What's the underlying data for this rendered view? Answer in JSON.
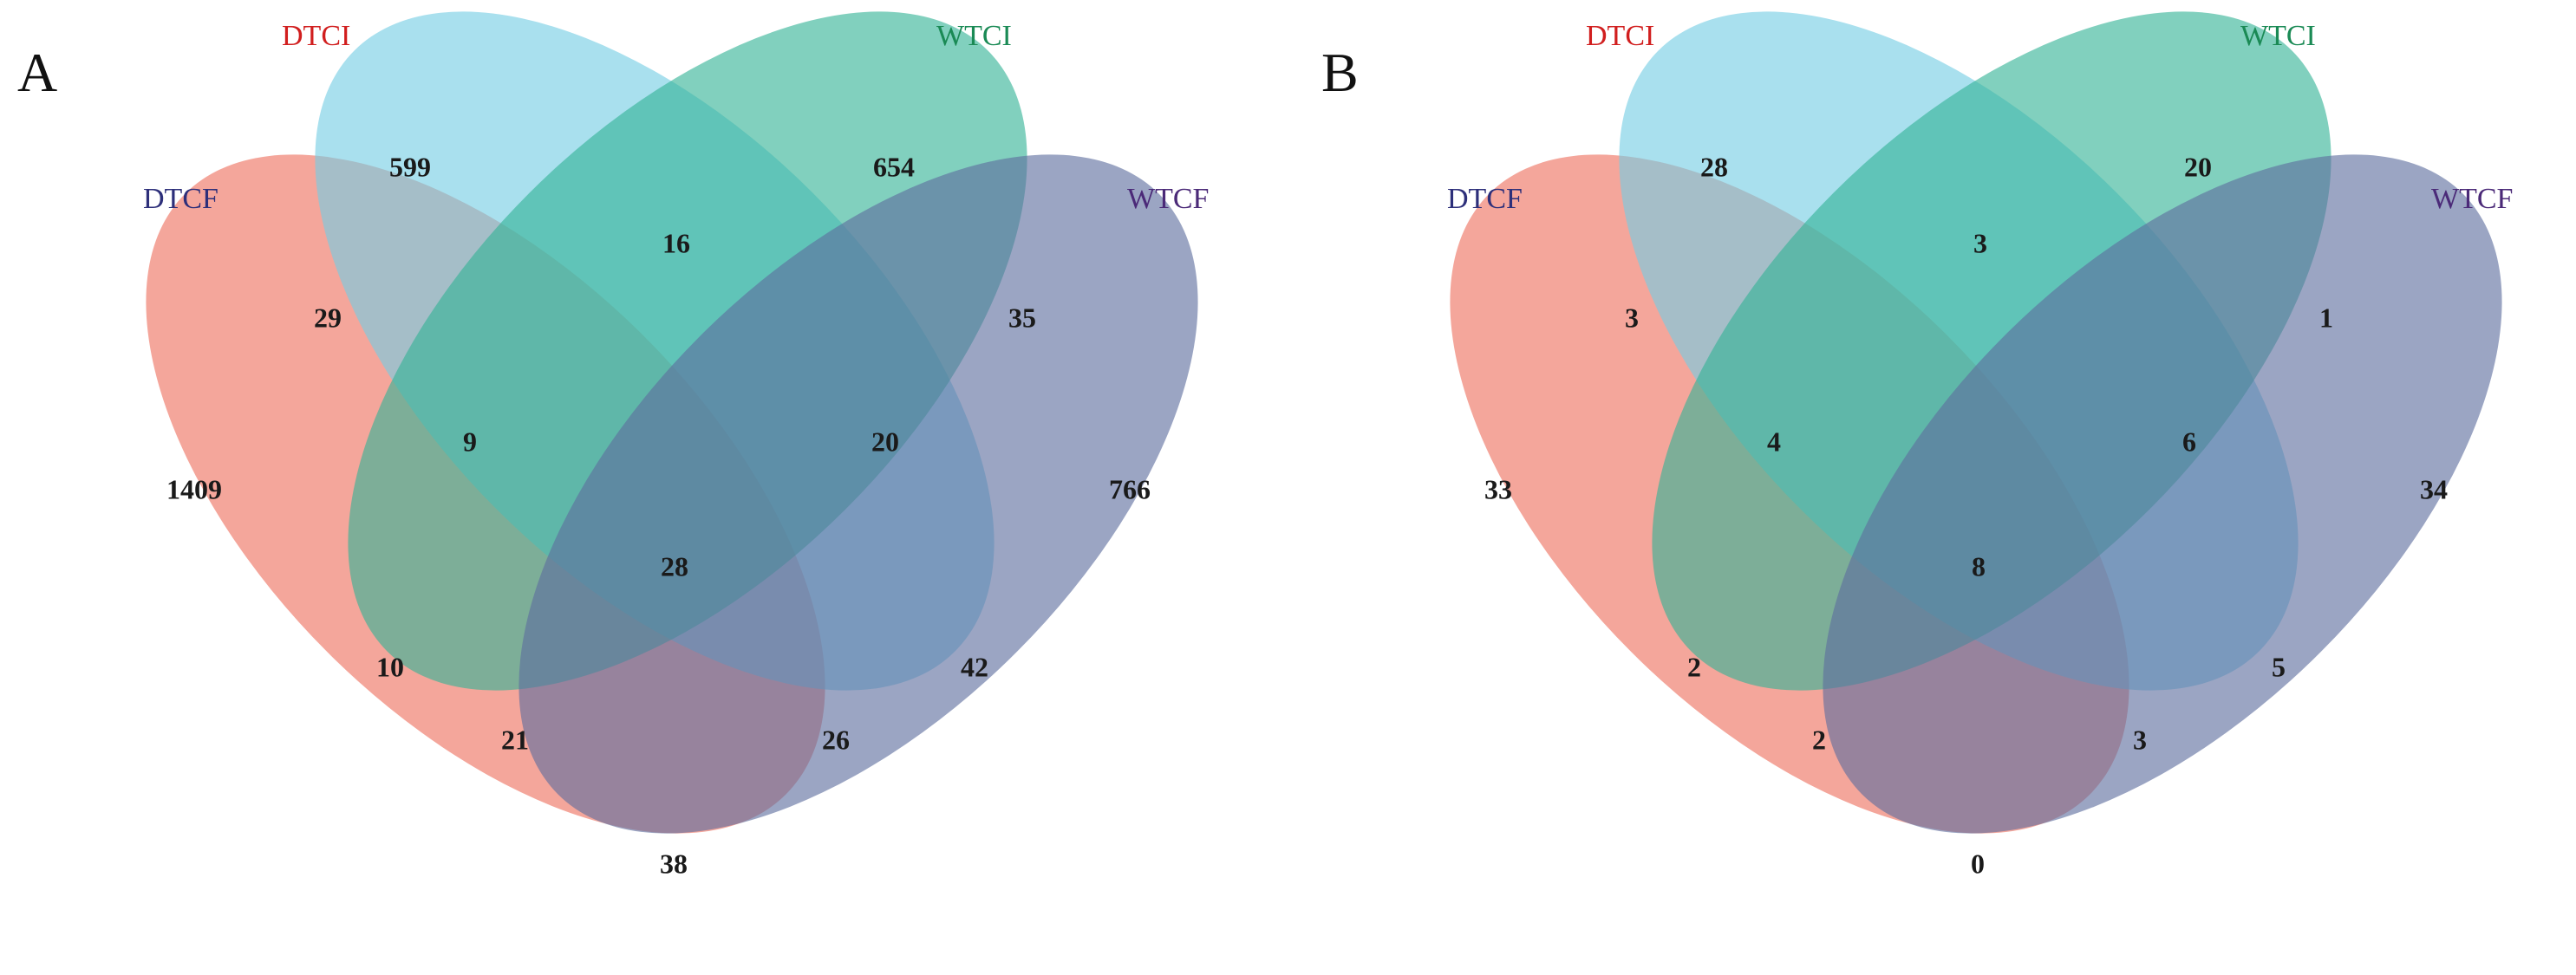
{
  "figure": {
    "panels": [
      {
        "panel_label": "A",
        "sets": [
          {
            "key": "DTCF",
            "label": "DTCF",
            "fill": "#ee6f5d",
            "label_color": "#2d2f7a"
          },
          {
            "key": "DTCI",
            "label": "DTCI",
            "fill": "#74cde4",
            "label_color": "#d11e1e"
          },
          {
            "key": "WTCI",
            "label": "WTCI",
            "fill": "#33b396",
            "label_color": "#1a8a55"
          },
          {
            "key": "WTCF",
            "label": "WTCF",
            "fill": "#5d6e9e",
            "label_color": "#4b2a78"
          }
        ],
        "regions": {
          "DTCF_only": "1409",
          "DTCI_only": "599",
          "WTCI_only": "654",
          "WTCF_only": "766",
          "DTCF_DTCI": "29",
          "DTCI_WTCI": "16",
          "WTCI_WTCF": "35",
          "DTCF_DTCI_WTCI": "9",
          "DTCI_WTCI_WTCF": "20",
          "all_four": "28",
          "DTCF_WTCI": "10",
          "DTCI_WTCF": "42",
          "DTCF_WTCI_WTCF": "21",
          "DTCF_DTCI_WTCF": "26",
          "DTCF_WTCF": "38"
        }
      },
      {
        "panel_label": "B",
        "sets": [
          {
            "key": "DTCF",
            "label": "DTCF",
            "fill": "#ee6f5d",
            "label_color": "#2d2f7a"
          },
          {
            "key": "DTCI",
            "label": "DTCI",
            "fill": "#74cde4",
            "label_color": "#d11e1e"
          },
          {
            "key": "WTCI",
            "label": "WTCI",
            "fill": "#33b396",
            "label_color": "#1a8a55"
          },
          {
            "key": "WTCF",
            "label": "WTCF",
            "fill": "#5d6e9e",
            "label_color": "#4b2a78"
          }
        ],
        "regions": {
          "DTCF_only": "33",
          "DTCI_only": "28",
          "WTCI_only": "20",
          "WTCF_only": "34",
          "DTCF_DTCI": "3",
          "DTCI_WTCI": "3",
          "WTCI_WTCF": "1",
          "DTCF_DTCI_WTCI": "4",
          "DTCI_WTCI_WTCF": "6",
          "all_four": "8",
          "DTCF_WTCI": "2",
          "DTCI_WTCF": "5",
          "DTCF_WTCI_WTCF": "2",
          "DTCF_DTCI_WTCF": "3",
          "DTCF_WTCF": "0"
        }
      }
    ]
  }
}
